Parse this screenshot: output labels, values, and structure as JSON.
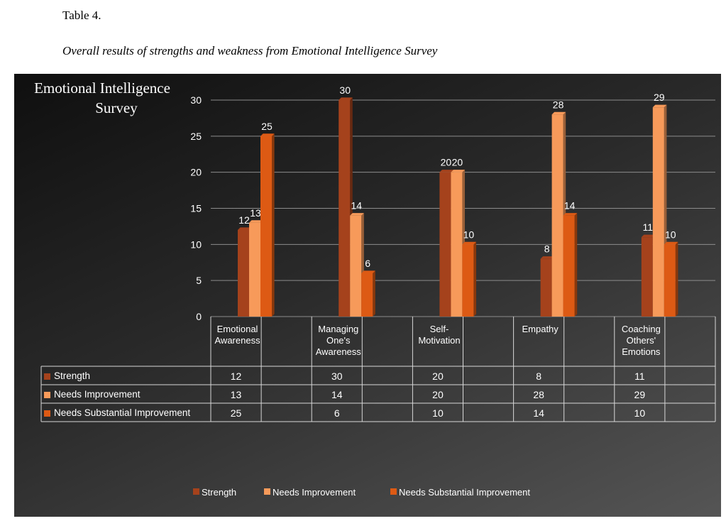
{
  "caption": {
    "number": "Table 4.",
    "title": "Overall results of strengths and weakness from Emotional Intelligence Survey"
  },
  "colors": {
    "strength": "#a5421c",
    "needs_improvement": "#f79a5a",
    "needs_substantial": "#dd5a14",
    "gridline": "#8c8c8c",
    "text": "#ffffff"
  },
  "chart_data": {
    "type": "bar",
    "title": "Emotional Intelligence Survey",
    "title_lines": [
      "Emotional Intelligence",
      "Survey"
    ],
    "categories": [
      "Emotional Awareness",
      "Managing One's Awareness",
      "Self-Motivation",
      "Empathy",
      "Coaching Others' Emotions"
    ],
    "category_label_lines": [
      [
        "Emotional",
        "Awareness"
      ],
      [
        "Managing",
        "One's",
        "Awareness"
      ],
      [
        "Self-",
        "Motivation"
      ],
      [
        "Empathy"
      ],
      [
        "Coaching",
        "Others'",
        "Emotions"
      ]
    ],
    "series": [
      {
        "name": "Strength",
        "values": [
          12,
          30,
          20,
          8,
          11
        ]
      },
      {
        "name": "Needs Improvement",
        "values": [
          13,
          14,
          20,
          28,
          29
        ]
      },
      {
        "name": "Needs Substantial Improvement",
        "values": [
          25,
          6,
          10,
          14,
          10
        ]
      }
    ],
    "ylim": [
      0,
      30
    ],
    "yticks": [
      0,
      5,
      10,
      15,
      20,
      25,
      30
    ],
    "grid": true,
    "data_table": true,
    "legend_position": "bottom"
  }
}
